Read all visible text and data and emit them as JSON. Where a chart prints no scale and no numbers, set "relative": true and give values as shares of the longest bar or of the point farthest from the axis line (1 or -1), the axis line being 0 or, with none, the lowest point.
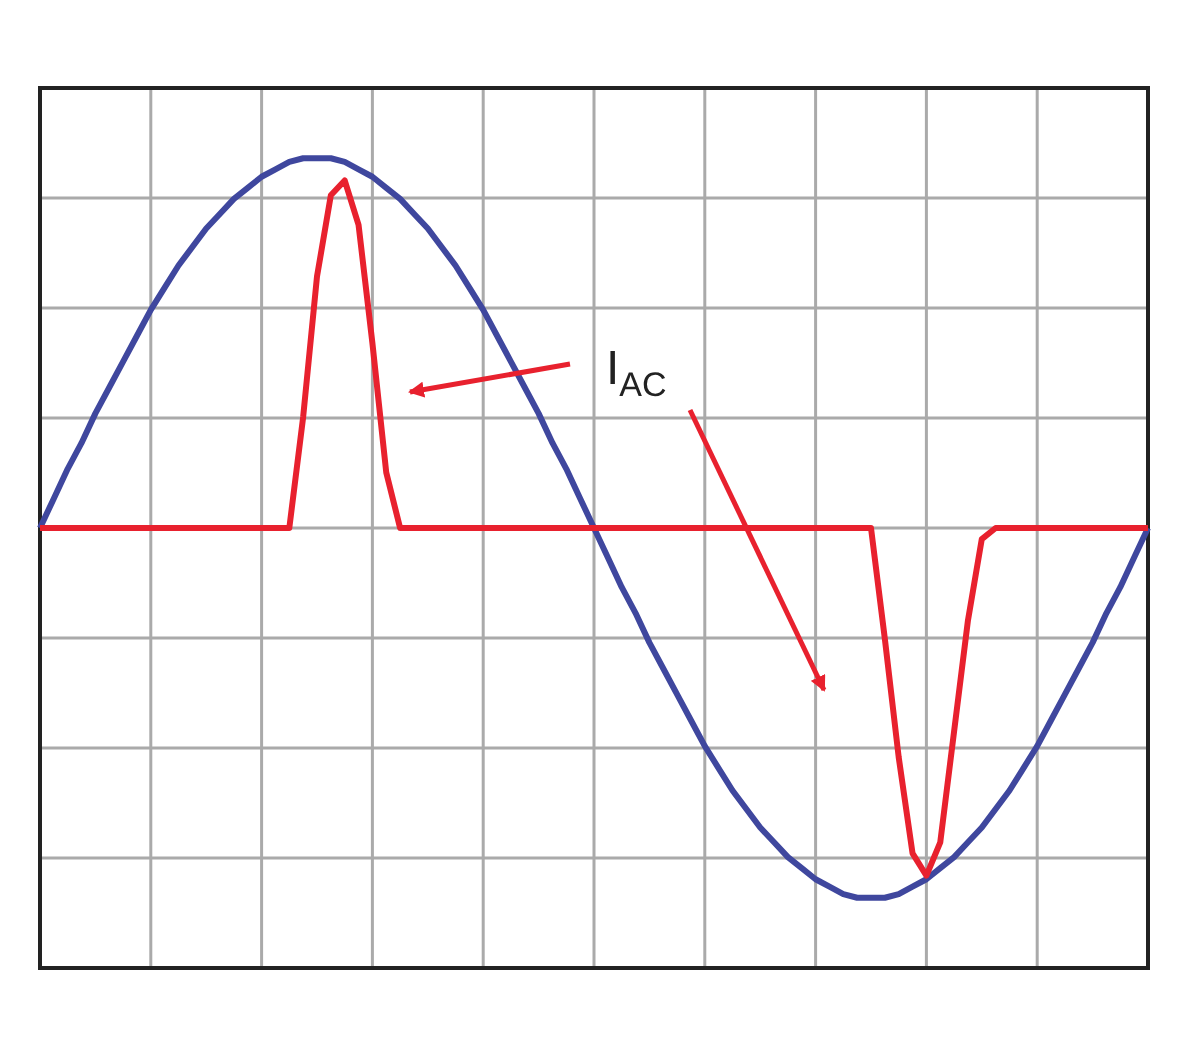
{
  "chart_data": {
    "type": "line",
    "relative": true,
    "grid": true,
    "line_style": "solid",
    "marker": "none",
    "categories": [
      null,
      null,
      null,
      null,
      null,
      null,
      null,
      null,
      null,
      null,
      null,
      null,
      null,
      null,
      null,
      null,
      null,
      null,
      null,
      null,
      null,
      null,
      null,
      null,
      null,
      null,
      null,
      null,
      null,
      null,
      null,
      null,
      null,
      null,
      null,
      null,
      null,
      null,
      null,
      null,
      null,
      null,
      null,
      null,
      null,
      null,
      null,
      null,
      null,
      null,
      null,
      null,
      null,
      null,
      null,
      null,
      null,
      null,
      null,
      null,
      null,
      null,
      null,
      null,
      null,
      null,
      null,
      null,
      null,
      null,
      null,
      null,
      null,
      null,
      null,
      null,
      null,
      null,
      null,
      null,
      null
    ],
    "series": [
      {
        "color": "#3f479e",
        "values": [
          0,
          0.08,
          0.16,
          0.23,
          0.31,
          0.38,
          0.45,
          0.52,
          0.59,
          0.65,
          0.71,
          0.76,
          0.81,
          0.85,
          0.89,
          0.92,
          0.95,
          0.97,
          0.99,
          1,
          1,
          1,
          0.99,
          0.97,
          0.95,
          0.92,
          0.89,
          0.85,
          0.81,
          0.76,
          0.71,
          0.65,
          0.59,
          0.52,
          0.45,
          0.38,
          0.31,
          0.23,
          0.16,
          0.08,
          0,
          -0.08,
          -0.16,
          -0.23,
          -0.31,
          -0.38,
          -0.45,
          -0.52,
          -0.59,
          -0.65,
          -0.71,
          -0.76,
          -0.81,
          -0.85,
          -0.89,
          -0.92,
          -0.95,
          -0.97,
          -0.99,
          -1,
          -1,
          -1,
          -0.99,
          -0.97,
          -0.95,
          -0.92,
          -0.89,
          -0.85,
          -0.81,
          -0.76,
          -0.71,
          -0.65,
          -0.59,
          -0.52,
          -0.45,
          -0.38,
          -0.31,
          -0.23,
          -0.16,
          -0.08,
          0
        ]
      },
      {
        "color": "#e8212e",
        "values": [
          0,
          0,
          0,
          0,
          0,
          0,
          0,
          0,
          0,
          0,
          0,
          0,
          0,
          0,
          0,
          0,
          0,
          0,
          0,
          0.3,
          0.68,
          0.9,
          0.94,
          0.82,
          0.5,
          0.15,
          0,
          0,
          0,
          0,
          0,
          0,
          0,
          0,
          0,
          0,
          0,
          0,
          0,
          0,
          0,
          0,
          0,
          0,
          0,
          0,
          0,
          0,
          0,
          0,
          0,
          0,
          0,
          0,
          0,
          0,
          0,
          0,
          0,
          0,
          0,
          -0.3,
          -0.62,
          -0.88,
          -0.94,
          -0.85,
          -0.55,
          -0.25,
          -0.03,
          0,
          0,
          0,
          0,
          0,
          0,
          0,
          0,
          0,
          0,
          0,
          0
        ]
      }
    ],
    "annotations": [
      "I$_{AC}$"
    ]
  }
}
